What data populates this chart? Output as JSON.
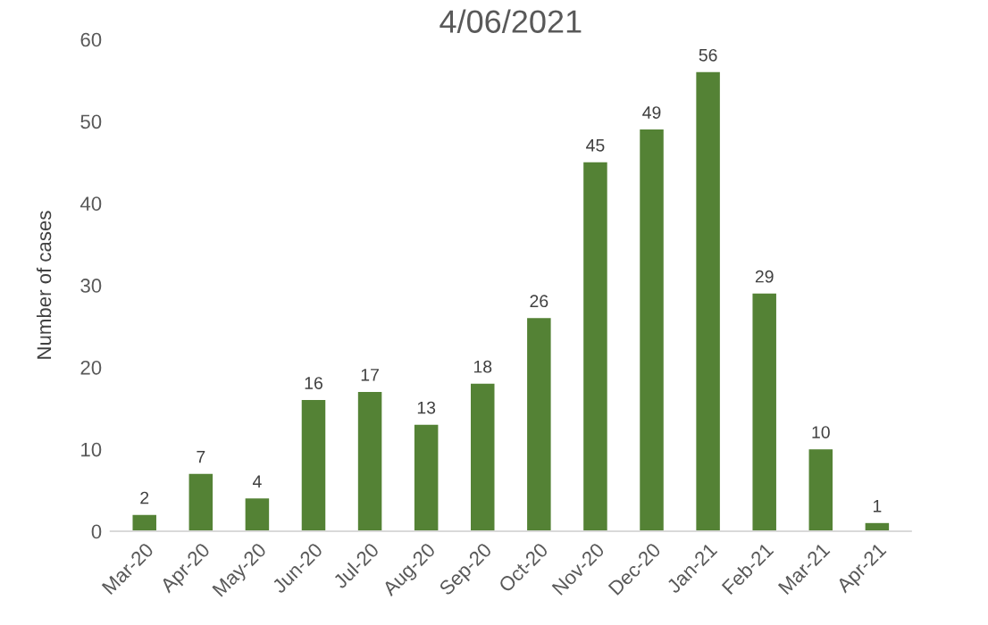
{
  "chart_data": {
    "type": "bar",
    "title": "4/06/2021",
    "ylabel": "Number of cases",
    "categories": [
      "Mar-20",
      "Apr-20",
      "May-20",
      "Jun-20",
      "Jul-20",
      "Aug-20",
      "Sep-20",
      "Oct-20",
      "Nov-20",
      "Dec-20",
      "Jan-21",
      "Feb-21",
      "Mar-21",
      "Apr-21"
    ],
    "values": [
      2,
      7,
      4,
      16,
      17,
      13,
      18,
      26,
      45,
      49,
      56,
      29,
      10,
      1
    ],
    "color": "#548235",
    "ylim": [
      0,
      60
    ],
    "yticks": [
      0,
      10,
      20,
      30,
      40,
      50,
      60
    ],
    "grid": false,
    "data_labels": true
  }
}
